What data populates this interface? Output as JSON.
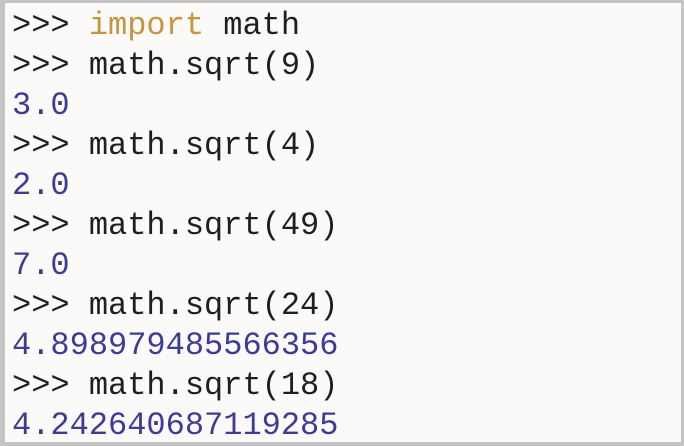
{
  "shell": {
    "app": "python-interactive-shell",
    "prompt": ">>> ",
    "lines": [
      {
        "kind": "input",
        "keyword": "import",
        "code": " math"
      },
      {
        "kind": "input",
        "code": "math.sqrt(9)"
      },
      {
        "kind": "output",
        "value": "3.0"
      },
      {
        "kind": "input",
        "code": "math.sqrt(4)"
      },
      {
        "kind": "output",
        "value": "2.0"
      },
      {
        "kind": "input",
        "code": "math.sqrt(49)"
      },
      {
        "kind": "output",
        "value": "7.0"
      },
      {
        "kind": "input",
        "code": "math.sqrt(24)"
      },
      {
        "kind": "output",
        "value": "4.898979485566356"
      },
      {
        "kind": "input",
        "code": "math.sqrt(18)"
      },
      {
        "kind": "output",
        "value": "4.242640687119285"
      }
    ],
    "colors": {
      "code-color": "#1f1f1f",
      "keyword-color": "#c6953e",
      "output-color": "#3c3c96",
      "bg-color": "#fbfaf8",
      "border-color": "#c4c4c4"
    }
  }
}
